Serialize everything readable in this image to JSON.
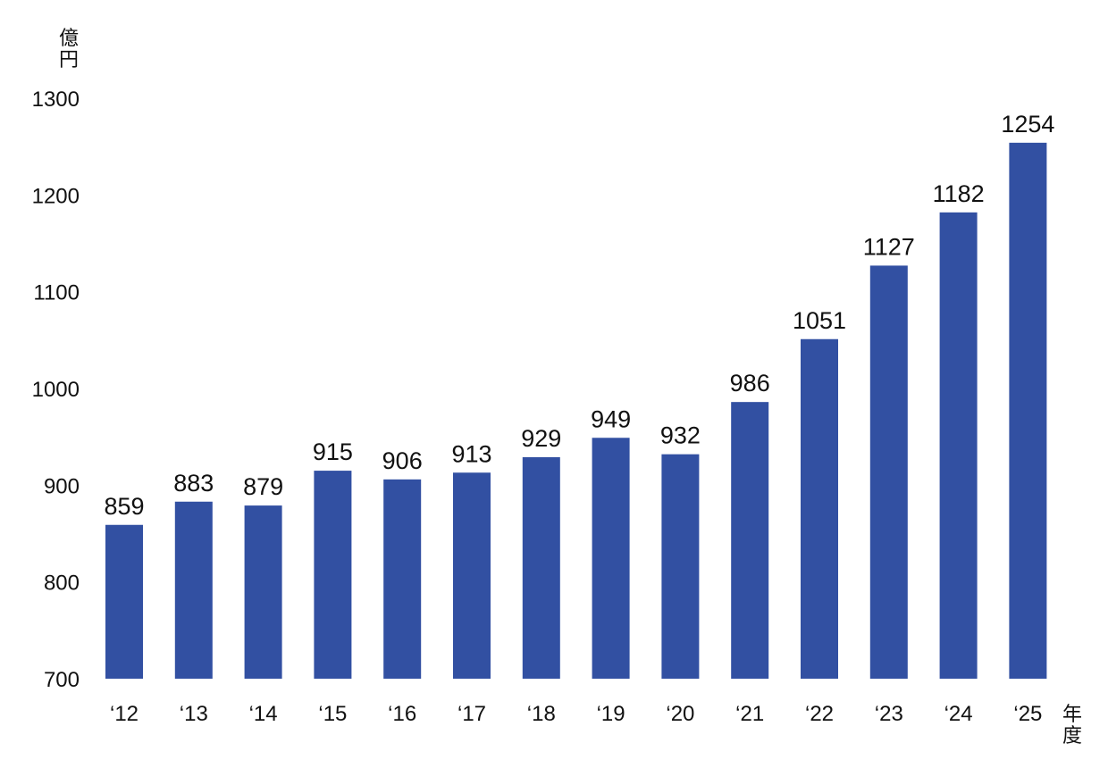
{
  "chart_data": {
    "type": "bar",
    "categories": [
      "‘12",
      "‘13",
      "‘14",
      "‘15",
      "‘16",
      "‘17",
      "‘18",
      "‘19",
      "‘20",
      "‘21",
      "‘22",
      "‘23",
      "‘24",
      "‘25"
    ],
    "values": [
      859,
      883,
      879,
      915,
      906,
      913,
      929,
      949,
      932,
      986,
      1051,
      1127,
      1182,
      1254
    ],
    "data_labels": [
      "859",
      "883",
      "879",
      "915",
      "906",
      "913",
      "929",
      "949",
      "932",
      "986",
      "1051",
      "1127",
      "1182",
      "1254"
    ],
    "y_ticks": [
      700,
      800,
      900,
      1000,
      1100,
      1200,
      1300
    ],
    "y_tick_labels": [
      "700",
      "800",
      "900",
      "1000",
      "1100",
      "1200",
      "1300"
    ],
    "ylim": [
      700,
      1300
    ],
    "y_unit": "億円",
    "x_unit": "年度",
    "bar_color": "#3250a2",
    "grid": false,
    "title": "",
    "xlabel": "",
    "ylabel": ""
  }
}
